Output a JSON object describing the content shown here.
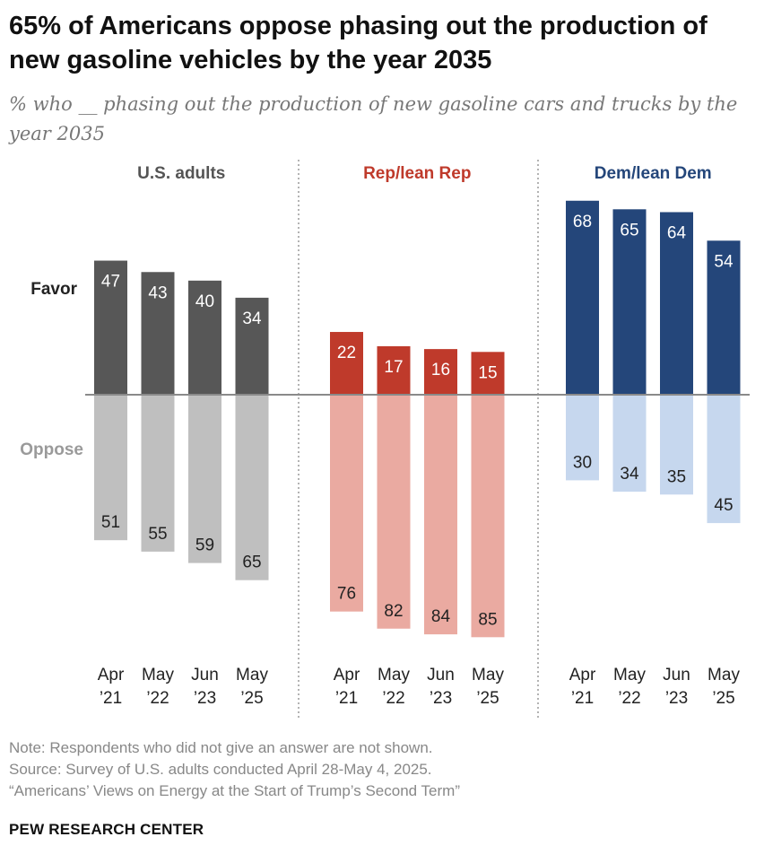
{
  "title": "65% of Americans oppose phasing out the production of new gasoline vehicles by the year 2035",
  "subtitle": "% who __ phasing out the production of new gasoline cars and trucks by the year 2035",
  "notes": [
    "Note: Respondents who did not give an answer are not shown.",
    "Source: Survey of U.S. adults conducted April 28-May 4, 2025.",
    "“Americans’ Views on Energy at the Start of Trump’s Second Term”"
  ],
  "brand": "PEW RESEARCH CENTER",
  "chart_data": {
    "type": "bar",
    "layout": "diverging-stacked",
    "row_labels": {
      "favor": "Favor",
      "oppose": "Oppose"
    },
    "categories": [
      {
        "line1": "Apr",
        "line2": "’21"
      },
      {
        "line1": "May",
        "line2": "’22"
      },
      {
        "line1": "Jun",
        "line2": "’23"
      },
      {
        "line1": "May",
        "line2": "’25"
      }
    ],
    "groups": [
      {
        "name": "U.S. adults",
        "label_color": "#555555",
        "favor_color": "#575757",
        "oppose_color": "#bfbfbf",
        "favor": [
          47,
          43,
          40,
          34
        ],
        "oppose": [
          51,
          55,
          59,
          65
        ]
      },
      {
        "name": "Rep/lean Rep",
        "label_color": "#bf3a2b",
        "favor_color": "#bf3a2b",
        "oppose_color": "#eaaaa1",
        "favor": [
          22,
          17,
          16,
          15
        ],
        "oppose": [
          76,
          82,
          84,
          85
        ]
      },
      {
        "name": "Dem/lean Dem",
        "label_color": "#24467a",
        "favor_color": "#24467a",
        "oppose_color": "#c6d7ee",
        "favor": [
          68,
          65,
          64,
          54
        ],
        "oppose": [
          30,
          34,
          35,
          45
        ]
      }
    ]
  }
}
